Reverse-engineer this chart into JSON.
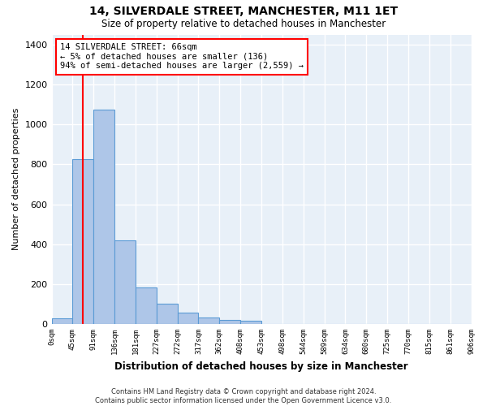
{
  "title": "14, SILVERDALE STREET, MANCHESTER, M11 1ET",
  "subtitle": "Size of property relative to detached houses in Manchester",
  "xlabel": "Distribution of detached houses by size in Manchester",
  "ylabel": "Number of detached properties",
  "bar_values": [
    28,
    825,
    1075,
    420,
    185,
    100,
    57,
    32,
    20,
    15,
    0,
    0,
    0,
    0,
    0,
    0,
    0,
    0,
    0,
    0
  ],
  "bar_color": "#aec6e8",
  "bar_edge_color": "#5b9bd5",
  "x_labels": [
    "0sqm",
    "45sqm",
    "91sqm",
    "136sqm",
    "181sqm",
    "227sqm",
    "272sqm",
    "317sqm",
    "362sqm",
    "408sqm",
    "453sqm",
    "498sqm",
    "544sqm",
    "589sqm",
    "634sqm",
    "680sqm",
    "725sqm",
    "770sqm",
    "815sqm",
    "861sqm",
    "906sqm"
  ],
  "ylim": [
    0,
    1450
  ],
  "yticks": [
    0,
    200,
    400,
    600,
    800,
    1000,
    1200,
    1400
  ],
  "annotation_text": "14 SILVERDALE STREET: 66sqm\n← 5% of detached houses are smaller (136)\n94% of semi-detached houses are larger (2,559) →",
  "red_line_x": 1.47,
  "footer_text": "Contains HM Land Registry data © Crown copyright and database right 2024.\nContains public sector information licensed under the Open Government Licence v3.0.",
  "background_color": "#e8f0f8",
  "grid_color": "#ffffff",
  "num_bins": 20
}
